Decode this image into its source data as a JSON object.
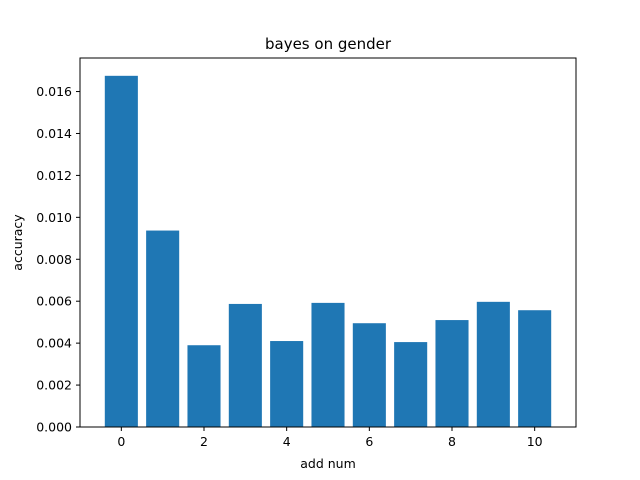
{
  "chart_data": {
    "type": "bar",
    "title": "bayes on gender",
    "xlabel": "add num",
    "ylabel": "accuracy",
    "x": [
      0,
      1,
      2,
      3,
      4,
      5,
      6,
      7,
      8,
      9,
      10
    ],
    "values": [
      0.01675,
      0.00937,
      0.0039,
      0.00587,
      0.0041,
      0.00592,
      0.00495,
      0.00405,
      0.0051,
      0.00597,
      0.00557
    ],
    "xlim": [
      -1,
      11
    ],
    "ylim": [
      0,
      0.0176
    ],
    "xticks": [
      0,
      2,
      4,
      6,
      8,
      10
    ],
    "xtick_labels": [
      "0",
      "2",
      "4",
      "6",
      "8",
      "10"
    ],
    "yticks": [
      0,
      0.002,
      0.004,
      0.006,
      0.008,
      0.01,
      0.012,
      0.014,
      0.016
    ],
    "ytick_labels": [
      "0.000",
      "0.002",
      "0.004",
      "0.006",
      "0.008",
      "0.010",
      "0.012",
      "0.014",
      "0.016"
    ],
    "bar_width": 0.8,
    "bar_color": "#1f77b4",
    "grid": false,
    "legend": "none"
  }
}
